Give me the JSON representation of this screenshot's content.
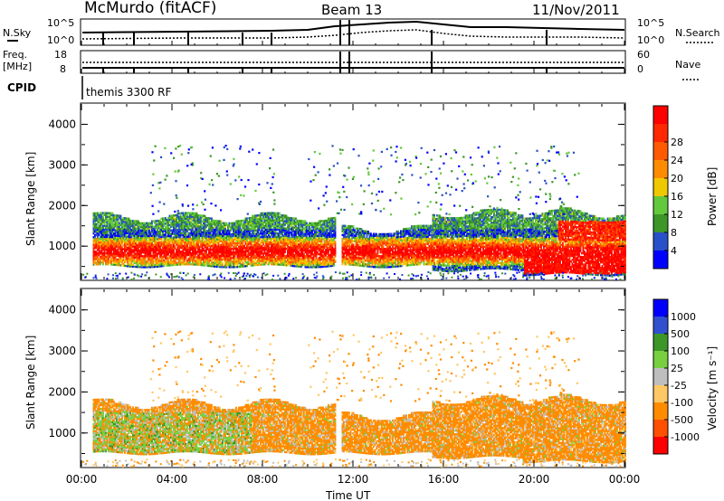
{
  "header": {
    "station": "McMurdo (fitACF)",
    "beam": "Beam 13",
    "date": "11/Nov/2011",
    "program": "themis 3300 RF"
  },
  "top_panels": {
    "nsky_label": "N.Sky",
    "nsky_ticks": [
      "10^5",
      "10^0"
    ],
    "nsearch_label": "N.Search",
    "nsearch_ticks": [
      "10^5",
      "10^0"
    ],
    "freq_label": "Freq.",
    "freq_unit": "[MHz]",
    "freq_ticks": [
      "18",
      "8"
    ],
    "nave_label": "Nave",
    "nave_ticks": [
      "60",
      "0"
    ],
    "cpid_label": "CPID"
  },
  "colors": {
    "power": [
      "#0000ff",
      "#2850c8",
      "#3c9628",
      "#64c83c",
      "#f0c800",
      "#ff8c00",
      "#ff5a00",
      "#ff2800",
      "#ff0000"
    ],
    "velocity": [
      "#0000ff",
      "#3050d0",
      "#3c9628",
      "#78d040",
      "#bebebe",
      "#ffc864",
      "#ff8c00",
      "#ff5000",
      "#ff0000"
    ]
  },
  "chart_data": [
    {
      "type": "heatmap",
      "panel": "power",
      "ylabel": "Slant Range [km]",
      "xlabel": "",
      "ylim": [
        180,
        4500
      ],
      "yticks": [
        "1000",
        "2000",
        "3000",
        "4000"
      ],
      "xticks": [
        "00:00",
        "04:00",
        "08:00",
        "12:00",
        "16:00",
        "20:00",
        "00:00"
      ],
      "colorbar": {
        "label": "Power [dB]",
        "ticks": [
          "4",
          "8",
          "12",
          "16",
          "20",
          "24",
          "28"
        ]
      },
      "echo_regions": [
        {
          "t_start": 0.5,
          "t_end": 11.2,
          "r_low": 500,
          "r_high": 1700,
          "power_db": 24
        },
        {
          "t_start": 11.5,
          "t_end": 15.5,
          "r_low": 500,
          "r_high": 1400,
          "power_db": 20
        },
        {
          "t_start": 15.5,
          "t_end": 19.5,
          "r_low": 400,
          "r_high": 1800,
          "power_db": 14
        },
        {
          "t_start": 19.5,
          "t_end": 24.0,
          "r_low": 300,
          "r_high": 1800,
          "power_db": 28
        }
      ]
    },
    {
      "type": "heatmap",
      "panel": "velocity",
      "ylabel": "Slant Range [km]",
      "xlabel": "Time UT",
      "ylim": [
        180,
        4500
      ],
      "yticks": [
        "1000",
        "2000",
        "3000",
        "4000"
      ],
      "xticks": [
        "00:00",
        "04:00",
        "08:00",
        "12:00",
        "16:00",
        "20:00",
        "00:00"
      ],
      "colorbar": {
        "label": "Velocity [m s⁻¹]",
        "ticks": [
          "1000",
          "500",
          "100",
          "25",
          "-25",
          "-100",
          "-500",
          "-1000"
        ]
      },
      "echo_regions": [
        {
          "t_start": 0.5,
          "t_end": 11.2,
          "r_low": 500,
          "r_high": 1700,
          "velocity_ms": -150
        },
        {
          "t_start": 11.5,
          "t_end": 15.5,
          "r_low": 500,
          "r_high": 1400,
          "velocity_ms": -200
        },
        {
          "t_start": 15.5,
          "t_end": 19.5,
          "r_low": 400,
          "r_high": 1800,
          "velocity_ms": -300
        },
        {
          "t_start": 19.5,
          "t_end": 24.0,
          "r_low": 300,
          "r_high": 1800,
          "velocity_ms": -200
        }
      ]
    }
  ]
}
